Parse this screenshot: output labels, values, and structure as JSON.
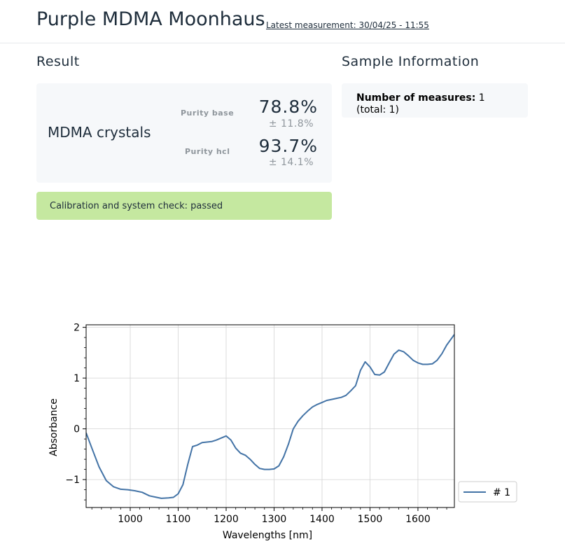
{
  "header": {
    "title": "Purple MDMA Moonhaus",
    "latest_measurement": "Latest measurement: 30/04/25 - 11:55"
  },
  "result": {
    "section_title": "Result",
    "sample_name": "MDMA crystals",
    "purity_base_label": "Purity base",
    "purity_base_value": "78.8%",
    "purity_base_deviation": "± 11.8%",
    "purity_hcl_label": "Purity hcl",
    "purity_hcl_value": "93.7%",
    "purity_hcl_deviation": "± 14.1%",
    "calibration_text": "Calibration and system check: passed"
  },
  "sample_info": {
    "section_title": "Sample Information",
    "measures_label": "Number of measures:",
    "measures_value": "1",
    "total_text": "(total: 1)"
  },
  "colors": {
    "line": "#4373a6",
    "calibration_bg": "#c5e8a0",
    "card_bg": "#f6f8fa"
  },
  "chart_data": {
    "type": "line",
    "title": "",
    "xlabel": "Wavelengths [nm]",
    "ylabel": "Absorbance",
    "xlim": [
      908,
      1676
    ],
    "ylim": [
      -1.55,
      2.05
    ],
    "xticks": [
      1000,
      1100,
      1200,
      1300,
      1400,
      1500,
      1600
    ],
    "yticks": [
      2,
      1,
      0,
      -1
    ],
    "ytick_labels": [
      "2",
      "1",
      "0",
      "−1"
    ],
    "grid": true,
    "legend": "outside-right",
    "series": [
      {
        "name": "# 1",
        "x": [
          908,
          920,
          935,
          950,
          965,
          980,
          995,
          1010,
          1025,
          1040,
          1055,
          1065,
          1080,
          1090,
          1100,
          1110,
          1120,
          1130,
          1140,
          1150,
          1160,
          1170,
          1180,
          1190,
          1200,
          1210,
          1220,
          1230,
          1240,
          1250,
          1260,
          1270,
          1280,
          1290,
          1300,
          1310,
          1320,
          1330,
          1340,
          1350,
          1360,
          1370,
          1380,
          1390,
          1400,
          1410,
          1420,
          1430,
          1440,
          1450,
          1460,
          1470,
          1480,
          1490,
          1500,
          1510,
          1520,
          1530,
          1540,
          1550,
          1560,
          1570,
          1580,
          1590,
          1600,
          1610,
          1620,
          1630,
          1640,
          1650,
          1660,
          1676
        ],
        "y": [
          -0.08,
          -0.38,
          -0.75,
          -1.02,
          -1.14,
          -1.19,
          -1.2,
          -1.22,
          -1.25,
          -1.32,
          -1.35,
          -1.37,
          -1.36,
          -1.35,
          -1.28,
          -1.1,
          -0.7,
          -0.35,
          -0.32,
          -0.27,
          -0.26,
          -0.25,
          -0.22,
          -0.18,
          -0.14,
          -0.22,
          -0.38,
          -0.48,
          -0.52,
          -0.6,
          -0.7,
          -0.78,
          -0.8,
          -0.8,
          -0.79,
          -0.73,
          -0.55,
          -0.3,
          0.0,
          0.15,
          0.26,
          0.35,
          0.43,
          0.48,
          0.52,
          0.56,
          0.58,
          0.6,
          0.62,
          0.66,
          0.75,
          0.85,
          1.15,
          1.32,
          1.22,
          1.07,
          1.06,
          1.12,
          1.3,
          1.47,
          1.55,
          1.52,
          1.44,
          1.35,
          1.3,
          1.27,
          1.27,
          1.28,
          1.35,
          1.48,
          1.65,
          1.86
        ]
      }
    ]
  }
}
